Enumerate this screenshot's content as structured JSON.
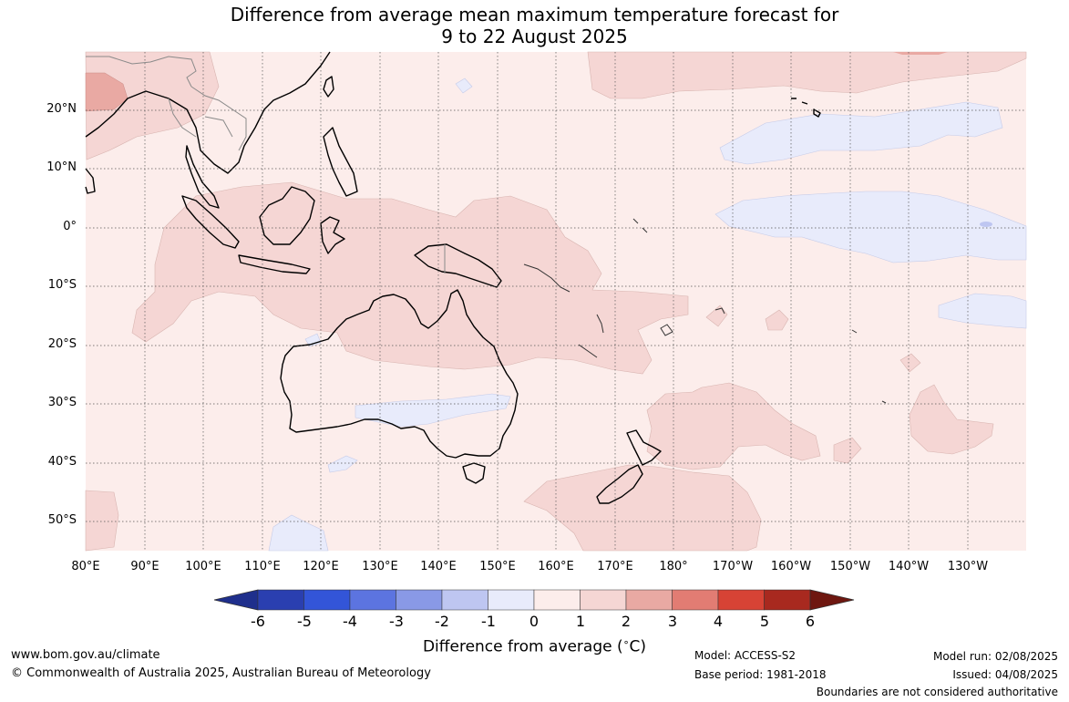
{
  "title_line1": "Difference from average mean maximum temperature forecast for",
  "title_line2": "9 to 22 August 2025",
  "map": {
    "lat_labels": [
      "20°N",
      "10°N",
      "0°",
      "10°S",
      "20°S",
      "30°S",
      "40°S",
      "50°S"
    ],
    "lon_labels": [
      "80°E",
      "90°E",
      "100°E",
      "110°E",
      "120°E",
      "130°E",
      "140°E",
      "150°E",
      "160°E",
      "170°E",
      "180°",
      "170°W",
      "160°W",
      "150°W",
      "140°W",
      "130°W"
    ],
    "gridlines": true,
    "region": "Australia, Maritime Continent and South-West Pacific"
  },
  "colorbar": {
    "ticks": [
      "-6",
      "-5",
      "-4",
      "-3",
      "-2",
      "-1",
      "0",
      "1",
      "2",
      "3",
      "4",
      "5",
      "6"
    ],
    "colors": [
      "#1f2f8c",
      "#2a3fb0",
      "#3355d8",
      "#5c74e0",
      "#8999e6",
      "#bec6f1",
      "#e8ebfb",
      "#fcedeb",
      "#f5d6d4",
      "#e9a9a3",
      "#e27c73",
      "#d74335",
      "#a8291f",
      "#6e1710"
    ],
    "title": "Difference from average (°C)",
    "title_text": "Difference from average (",
    "title_unit": "C)"
  },
  "footer": {
    "website": "www.bom.gov.au/climate",
    "copyright": "© Commonwealth of Australia 2025, Australian Bureau of Meteorology",
    "model": "Model: ACCESS-S2",
    "base_period": "Base period: 1981-2018",
    "model_run": "Model run: 02/08/2025",
    "issued": "Issued: 04/08/2025",
    "disclaimer": "Boundaries are not considered authoritative"
  }
}
